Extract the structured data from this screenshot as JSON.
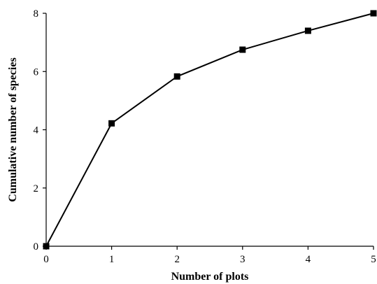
{
  "chart_data": {
    "type": "line",
    "title": "",
    "xlabel": "Number of plots",
    "ylabel": "Cumulative number of species",
    "xlim": [
      0,
      5
    ],
    "ylim": [
      0,
      8
    ],
    "x_ticks": [
      "0",
      "1",
      "2",
      "3",
      "4",
      "5"
    ],
    "y_ticks": [
      "0",
      "2",
      "4",
      "6",
      "8"
    ],
    "grid": false,
    "legend": "none",
    "marker": "square",
    "color": "#000000",
    "series": [
      {
        "x": [
          0,
          1,
          2,
          3,
          4,
          5
        ],
        "values": [
          0,
          4.22,
          5.83,
          6.75,
          7.4,
          8
        ]
      }
    ]
  }
}
